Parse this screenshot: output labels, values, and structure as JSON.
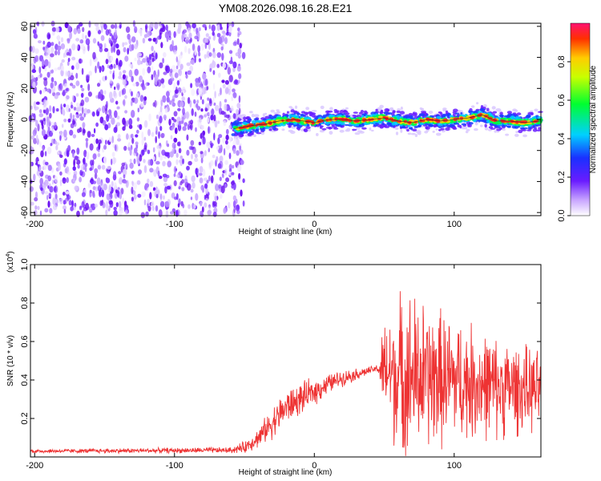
{
  "figure": {
    "title": "YM08.2026.098.16.28.E21"
  },
  "colorbar": {
    "label": "Normalized spectral amplitude",
    "ticks": [
      {
        "value": 0.0,
        "label": "0.0"
      },
      {
        "value": 0.2,
        "label": "0.2"
      },
      {
        "value": 0.4,
        "label": "0.4"
      },
      {
        "value": 0.6,
        "label": "0.6"
      },
      {
        "value": 0.8,
        "label": "0.8"
      }
    ],
    "range": [
      0,
      1
    ],
    "colors": [
      "#ffffff",
      "#9a5cff",
      "#3a00ff",
      "#00c8ff",
      "#00ff40",
      "#ffff00",
      "#ff4000",
      "#ff1060"
    ]
  },
  "chart_data": [
    {
      "type": "heatmap",
      "name": "spectrogram",
      "xlabel": "Height of straight line (km)",
      "ylabel": "Frequency (Hz)",
      "xlim": [
        -203,
        162
      ],
      "ylim": [
        -62,
        62
      ],
      "xticks": [
        {
          "value": -200,
          "label": "-200"
        },
        {
          "value": -100,
          "label": "-100"
        },
        {
          "value": 0,
          "label": "0"
        },
        {
          "value": 100,
          "label": "100"
        }
      ],
      "yticks": [
        {
          "value": 60,
          "label": "60"
        },
        {
          "value": 40,
          "label": "40"
        },
        {
          "value": 20,
          "label": "20"
        },
        {
          "value": 0,
          "label": "0"
        },
        {
          "value": -20,
          "label": "-20"
        },
        {
          "value": -40,
          "label": "-40"
        },
        {
          "value": -60,
          "label": "-60"
        }
      ],
      "noise_region_x": [
        -203,
        -55
      ],
      "ridge": {
        "x": [
          -58,
          -45,
          -35,
          -25,
          -15,
          -8,
          0,
          10,
          20,
          30,
          40,
          50,
          60,
          70,
          80,
          90,
          100,
          110,
          120,
          130,
          140,
          150,
          162
        ],
        "y": [
          -6,
          -4,
          -3,
          -1,
          0,
          -1,
          -2,
          0,
          0,
          -1,
          0,
          1,
          -1,
          -2,
          0,
          -1,
          0,
          1,
          3,
          -1,
          -1,
          -2,
          -1
        ]
      }
    },
    {
      "type": "line",
      "name": "snr",
      "xlabel": "Height of straight line (km)",
      "ylabel": "SNR (10 * v/v)",
      "y_multiplier": "(x10",
      "y_multiplier_exp": "4",
      "xlim": [
        -203,
        162
      ],
      "ylim": [
        0,
        1.0
      ],
      "color": "#ee3333",
      "xticks": [
        {
          "value": -200,
          "label": "-200"
        },
        {
          "value": -100,
          "label": "-100"
        },
        {
          "value": 0,
          "label": "0"
        },
        {
          "value": 100,
          "label": "100"
        }
      ],
      "yticks": [
        {
          "value": 1.0,
          "label": "1.0"
        },
        {
          "value": 0.8,
          "label": "0.8"
        },
        {
          "value": 0.6,
          "label": "0.6"
        },
        {
          "value": 0.4,
          "label": "0.4"
        },
        {
          "value": 0.2,
          "label": "0.2"
        }
      ],
      "envelope": {
        "x": [
          -203,
          -60,
          -50,
          -40,
          -30,
          -20,
          -10,
          0,
          10,
          20,
          30,
          40,
          45,
          50,
          60,
          65,
          70,
          80,
          90,
          100,
          110,
          120,
          130,
          140,
          150,
          162
        ],
        "mean": [
          0.03,
          0.035,
          0.05,
          0.1,
          0.18,
          0.26,
          0.3,
          0.34,
          0.38,
          0.41,
          0.43,
          0.45,
          0.46,
          0.45,
          0.42,
          0.42,
          0.42,
          0.41,
          0.41,
          0.4,
          0.39,
          0.38,
          0.36,
          0.36,
          0.35,
          0.34
        ],
        "spread": [
          0.01,
          0.015,
          0.03,
          0.05,
          0.08,
          0.09,
          0.08,
          0.07,
          0.05,
          0.04,
          0.03,
          0.02,
          0.02,
          0.25,
          0.4,
          0.45,
          0.42,
          0.38,
          0.35,
          0.32,
          0.3,
          0.28,
          0.26,
          0.24,
          0.22,
          0.2
        ]
      }
    }
  ]
}
